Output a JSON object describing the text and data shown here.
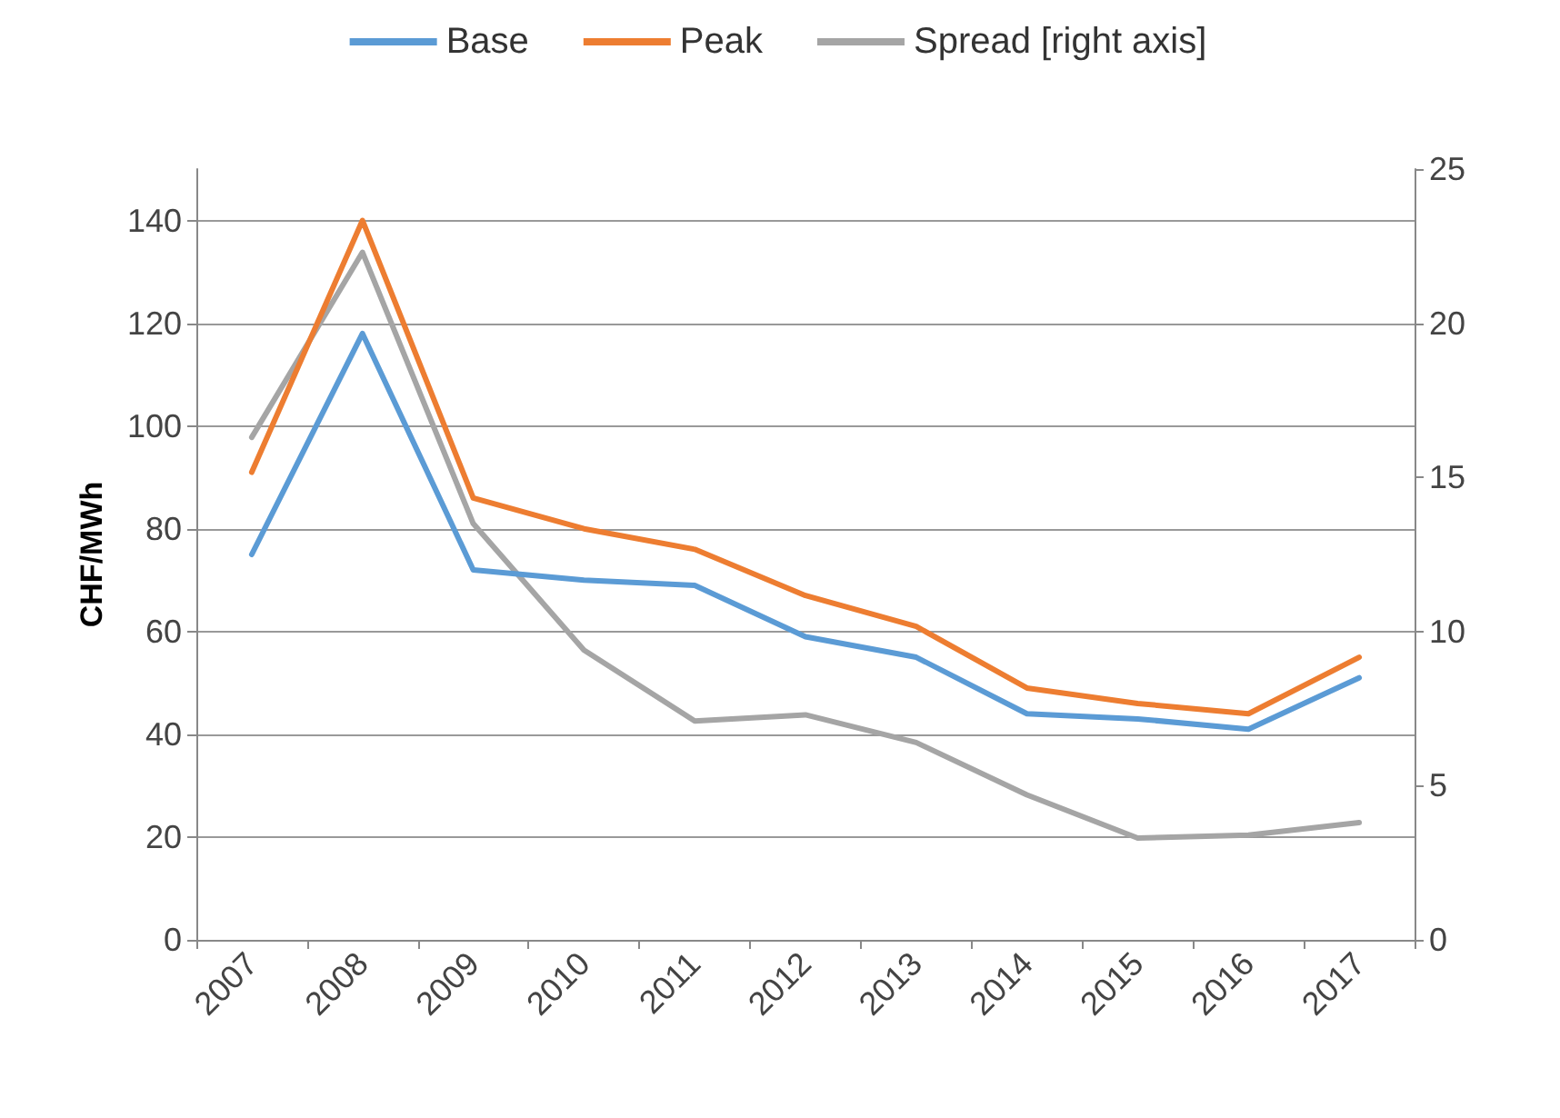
{
  "chart_data": {
    "type": "line",
    "ylabel": "CHF/MWh",
    "categories": [
      "2007",
      "2008",
      "2009",
      "2010",
      "2011",
      "2012",
      "2013",
      "2014",
      "2015",
      "2016",
      "2017"
    ],
    "series": [
      {
        "name": "Base",
        "color": "#5b9bd5",
        "values": [
          75,
          118,
          72,
          70,
          69,
          59,
          55,
          44,
          43,
          41,
          51
        ]
      },
      {
        "name": "Peak",
        "color": "#ed7d31",
        "values": [
          91,
          140,
          86,
          80,
          76,
          67,
          61,
          49,
          46,
          44,
          55
        ]
      },
      {
        "name": "Spread [right axis]",
        "color": "#a5a5a5",
        "axis": "y2",
        "values": [
          16.3,
          22.3,
          13.5,
          9.4,
          7.1,
          7.3,
          6.4,
          4.7,
          3.3,
          3.4,
          3.8
        ]
      }
    ],
    "ylim": [
      0,
      150
    ],
    "yticks": [
      0,
      20,
      40,
      60,
      80,
      100,
      120,
      140
    ],
    "y2lim": [
      0,
      25
    ],
    "y2ticks": [
      0,
      5,
      10,
      15,
      20,
      25
    ],
    "grid": "y",
    "legend": "top",
    "marker": "none",
    "line_style": "solid"
  }
}
